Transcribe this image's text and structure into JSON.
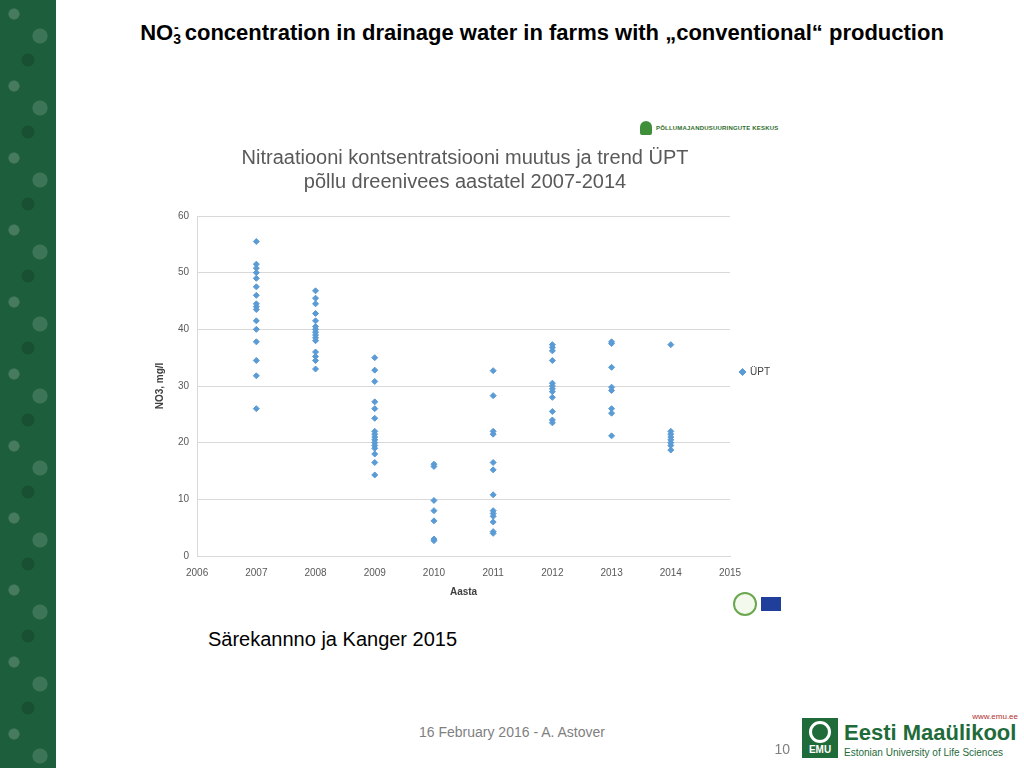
{
  "slide": {
    "title": {
      "pre": "NO",
      "sub": "3",
      "sup": "-",
      "rest": " concentration in drainage water in farms with „conventional“ production"
    },
    "caption": "Särekannno ja Kanger 2015",
    "footer": "16 February 2016 - A. Astover",
    "page_number": 10,
    "top_logo": "PÕLLUMAJANDUSUURINGUTE KESKUS",
    "university": {
      "url": "www.emu.ee",
      "abbr": "EMU",
      "name": "Eesti Maaülikool",
      "name_en": "Estonian University of Life Sciences"
    }
  },
  "chart_data": {
    "type": "scatter",
    "title": [
      "Nitraatiooni kontsentratsiooni muutus ja trend ÜPT",
      "põllu dreenivees aastatel 2007-2014"
    ],
    "x_label": "Aasta",
    "y_label": "NO3, mg/l",
    "x": [
      2007,
      2007,
      2007,
      2007,
      2007,
      2007,
      2007,
      2007,
      2007,
      2007,
      2007,
      2007,
      2007,
      2007,
      2007,
      2007,
      2008,
      2008,
      2008,
      2008,
      2008,
      2008,
      2008,
      2008,
      2008,
      2008,
      2008,
      2008,
      2008,
      2008,
      2008,
      2009,
      2009,
      2009,
      2009,
      2009,
      2009,
      2009,
      2009,
      2009,
      2009,
      2009,
      2009,
      2009,
      2009,
      2009,
      2009,
      2010,
      2010,
      2010,
      2010,
      2010,
      2010,
      2010,
      2011,
      2011,
      2011,
      2011,
      2011,
      2011,
      2011,
      2011,
      2011,
      2011,
      2011,
      2011,
      2011,
      2012,
      2012,
      2012,
      2012,
      2012,
      2012,
      2012,
      2012,
      2012,
      2012,
      2012,
      2012,
      2013,
      2013,
      2013,
      2013,
      2013,
      2013,
      2013,
      2013,
      2014,
      2014,
      2014,
      2014,
      2014,
      2014,
      2014,
      2014
    ],
    "series": [
      {
        "name": "ÜPT",
        "color": "#5b9bd5",
        "marker": "diamond",
        "values": [
          55.5,
          51.5,
          50.8,
          50,
          49,
          47.5,
          46,
          44.5,
          44,
          43.5,
          41.5,
          40,
          37.8,
          34.5,
          31.8,
          26,
          46.8,
          45.5,
          44.5,
          42.8,
          41.5,
          40.5,
          40,
          39.5,
          39,
          38.5,
          38,
          36,
          35.2,
          34.5,
          33,
          35,
          32.8,
          30.8,
          27.2,
          26,
          24.3,
          22,
          21.5,
          21,
          20.5,
          20,
          19.5,
          19,
          18,
          16.5,
          14.3,
          16.2,
          15.8,
          9.8,
          8,
          6.2,
          3,
          2.7,
          32.7,
          28.3,
          22,
          21.5,
          16.5,
          15.2,
          10.8,
          8,
          7.5,
          7,
          6,
          4.3,
          4,
          37.3,
          36.8,
          36.2,
          34.5,
          30.5,
          30,
          29.5,
          29,
          28,
          25.5,
          24,
          23.5,
          37.8,
          37.5,
          33.3,
          29.8,
          29.2,
          26,
          25.2,
          21.2,
          37.3,
          22,
          21.5,
          21,
          20.5,
          20,
          19.5,
          18.7
        ]
      }
    ],
    "xlim": [
      2006,
      2015
    ],
    "xticks": [
      2006,
      2007,
      2008,
      2009,
      2010,
      2011,
      2012,
      2013,
      2014,
      2015
    ],
    "ylim": [
      0,
      60
    ],
    "yticks": [
      0,
      10,
      20,
      30,
      40,
      50,
      60
    ],
    "grid": true,
    "legend": "right"
  }
}
